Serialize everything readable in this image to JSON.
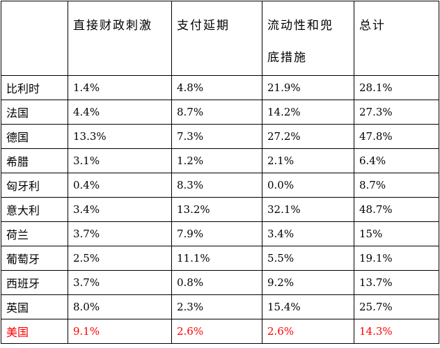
{
  "table": {
    "headers": [
      "",
      "直接财政刺激",
      "支付延期",
      "流动性和兜底措施",
      "总计"
    ],
    "header_lines": {
      "col3": [
        "流动性和兜",
        "底措施"
      ]
    },
    "rows": [
      {
        "country": "比利时",
        "direct": "1.4%",
        "deferral": "4.8%",
        "liquidity": "21.9%",
        "total": "28.1%"
      },
      {
        "country": "法国",
        "direct": "4.4%",
        "deferral": "8.7%",
        "liquidity": "14.2%",
        "total": "27.3%"
      },
      {
        "country": "德国",
        "direct": "13.3%",
        "deferral": "7.3%",
        "liquidity": "27.2%",
        "total": "47.8%"
      },
      {
        "country": "希腊",
        "direct": "3.1%",
        "deferral": "1.2%",
        "liquidity": "2.1%",
        "total": "6.4%"
      },
      {
        "country": "匈牙利",
        "direct": "0.4%",
        "deferral": "8.3%",
        "liquidity": "0.0%",
        "total": "8.7%"
      },
      {
        "country": "意大利",
        "direct": "3.4%",
        "deferral": "13.2%",
        "liquidity": "32.1%",
        "total": "48.7%"
      },
      {
        "country": "荷兰",
        "direct": "3.7%",
        "deferral": "7.9%",
        "liquidity": "3.4%",
        "total": "15%"
      },
      {
        "country": "葡萄牙",
        "direct": "2.5%",
        "deferral": "11.1%",
        "liquidity": "5.5%",
        "total": "19.1%"
      },
      {
        "country": "西班牙",
        "direct": "3.7%",
        "deferral": "0.8%",
        "liquidity": "9.2%",
        "total": "13.7%"
      },
      {
        "country": "英国",
        "direct": "8.0%",
        "deferral": "2.3%",
        "liquidity": "15.4%",
        "total": "25.7%"
      },
      {
        "country": "美国",
        "direct": "9.1%",
        "deferral": "2.6%",
        "liquidity": "2.6%",
        "total": "14.3%"
      }
    ],
    "highlight_row_index": 10,
    "highlight_color": "#ff0000",
    "border_color": "#000000"
  }
}
